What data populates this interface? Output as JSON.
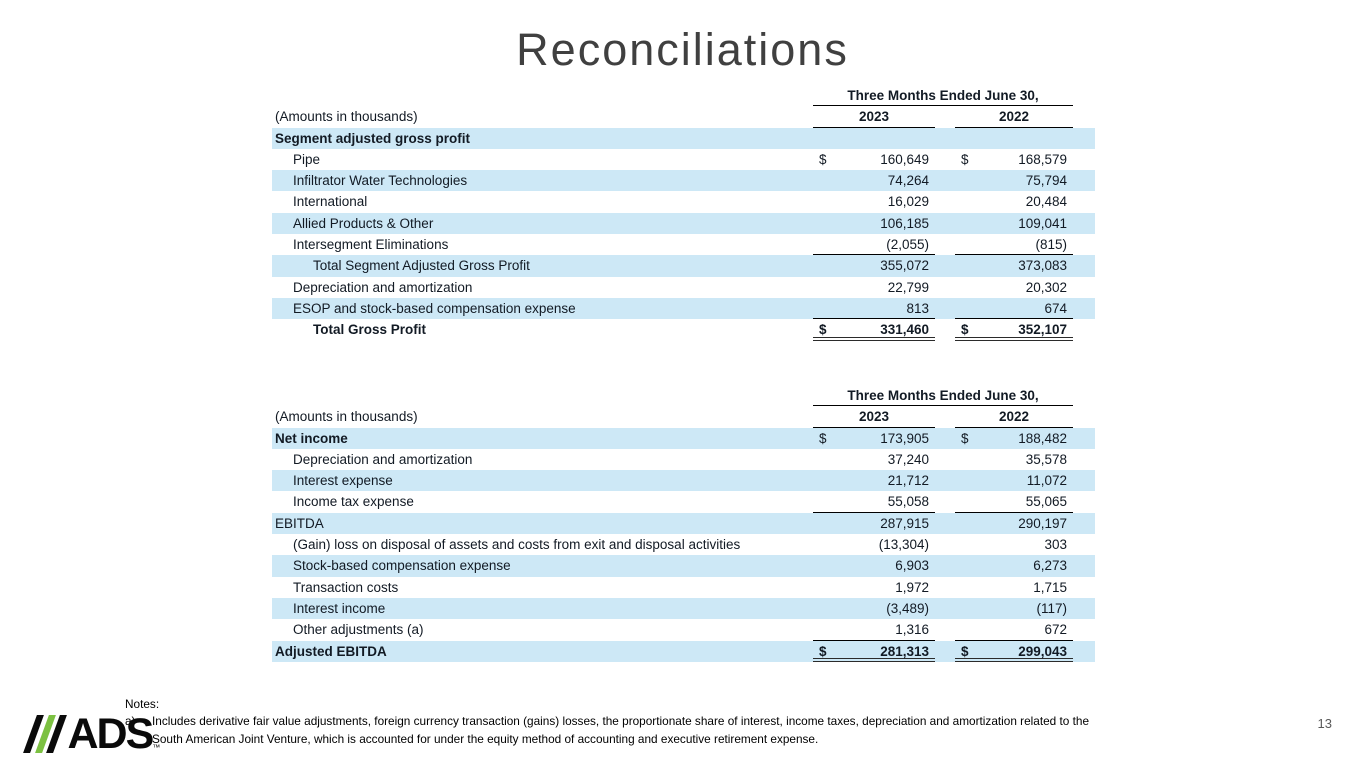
{
  "title": "Reconciliations",
  "page_number": "13",
  "logo": {
    "text": "ADS",
    "trademark": "™",
    "slashes": [
      "black-slash",
      "green-slash",
      "black-slash"
    ]
  },
  "notes": {
    "label": "Notes:",
    "marker": "a)",
    "text": "Includes derivative fair value adjustments, foreign currency transaction (gains) losses, the proportionate share of interest, income taxes, depreciation and amortization related to the South American Joint Venture, which is accounted for under the equity method of accounting and executive retirement expense."
  },
  "colors": {
    "highlight": "#cde8f6",
    "title": "#404040",
    "logo_green": "#7cc142",
    "line": "#000000",
    "page_number": "#595959"
  },
  "tables": [
    {
      "name": "segment-adjusted-gross-profit",
      "span_header": "Three Months Ended June 30,",
      "amounts_label": "(Amounts in thousands)",
      "columns": [
        "2023",
        "2022"
      ],
      "rows": [
        {
          "label": "Segment adjusted gross profit",
          "values": [
            "",
            ""
          ],
          "indent": 0,
          "bold_label": true,
          "highlight": true
        },
        {
          "label": "Pipe",
          "values": [
            "160,649",
            "168,579"
          ],
          "indent": 1,
          "dollar": true
        },
        {
          "label": "Infiltrator Water Technologies",
          "values": [
            "74,264",
            "75,794"
          ],
          "indent": 1,
          "highlight": true
        },
        {
          "label": "International",
          "values": [
            "16,029",
            "20,484"
          ],
          "indent": 1
        },
        {
          "label": "Allied Products & Other",
          "values": [
            "106,185",
            "109,041"
          ],
          "indent": 1,
          "highlight": true
        },
        {
          "label": "Intersegment Eliminations",
          "values": [
            "(2,055)",
            "(815)"
          ],
          "indent": 1,
          "line_below": "single"
        },
        {
          "label": "Total Segment Adjusted Gross Profit",
          "values": [
            "355,072",
            "373,083"
          ],
          "indent": 2,
          "highlight": true
        },
        {
          "label": "Depreciation and amortization",
          "values": [
            "22,799",
            "20,302"
          ],
          "indent": 1
        },
        {
          "label": "ESOP and stock-based compensation expense",
          "values": [
            "813",
            "674"
          ],
          "indent": 1,
          "highlight": true,
          "line_below": "single"
        },
        {
          "label": "Total Gross Profit",
          "values": [
            "331,460",
            "352,107"
          ],
          "indent": 2,
          "bold_label": true,
          "bold_values": true,
          "dollar": true,
          "line_below": "double"
        }
      ]
    },
    {
      "name": "adjusted-ebitda-reconciliation",
      "span_header": "Three Months Ended June 30,",
      "amounts_label": "(Amounts in thousands)",
      "columns": [
        "2023",
        "2022"
      ],
      "rows": [
        {
          "label": "Net income",
          "values": [
            "173,905",
            "188,482"
          ],
          "indent": 0,
          "bold_label": true,
          "highlight": true,
          "dollar": true
        },
        {
          "label": "Depreciation and amortization",
          "values": [
            "37,240",
            "35,578"
          ],
          "indent": 1
        },
        {
          "label": "Interest expense",
          "values": [
            "21,712",
            "11,072"
          ],
          "indent": 1,
          "highlight": true
        },
        {
          "label": "Income tax expense",
          "values": [
            "55,058",
            "55,065"
          ],
          "indent": 1,
          "line_below": "single"
        },
        {
          "label": "EBITDA",
          "values": [
            "287,915",
            "290,197"
          ],
          "indent": 0,
          "highlight": true
        },
        {
          "label": "(Gain) loss on disposal of assets and costs from exit and disposal activities",
          "values": [
            "(13,304)",
            "303"
          ],
          "indent": 1
        },
        {
          "label": "Stock-based compensation expense",
          "values": [
            "6,903",
            "6,273"
          ],
          "indent": 1,
          "highlight": true
        },
        {
          "label": "Transaction costs",
          "values": [
            "1,972",
            "1,715"
          ],
          "indent": 1
        },
        {
          "label": "Interest income",
          "values": [
            "(3,489)",
            "(117)"
          ],
          "indent": 1,
          "highlight": true
        },
        {
          "label": "Other adjustments (a)",
          "values": [
            "1,316",
            "672"
          ],
          "indent": 1,
          "line_below": "single"
        },
        {
          "label": "Adjusted EBITDA",
          "values": [
            "281,313",
            "299,043"
          ],
          "indent": 0,
          "bold_label": true,
          "bold_values": true,
          "highlight": true,
          "dollar": true,
          "line_below": "double"
        }
      ]
    }
  ]
}
